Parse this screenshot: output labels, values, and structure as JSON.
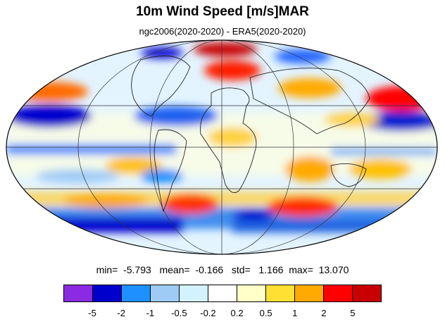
{
  "title": "10m Wind Speed [m/s]MAR",
  "subtitle": "ngc2006(2020-2020) - ERA5(2020-2020)",
  "stats": {
    "min_label": "min=",
    "min": "-5.793",
    "mean_label": "mean=",
    "mean": "-0.166",
    "std_label": "std=",
    "std": "1.166",
    "max_label": "max=",
    "max": "13.070"
  },
  "colorbar": {
    "colors": [
      "#8a2be2",
      "#0000cd",
      "#1e90ff",
      "#9ecbf5",
      "#d2f2ff",
      "#ffffff",
      "#ffffc8",
      "#ffe033",
      "#ffaa00",
      "#ff0000",
      "#c80000"
    ],
    "tick_labels": [
      "-5",
      "-2",
      "-1",
      "-0.5",
      "-0.2",
      "0.2",
      "0.5",
      "1",
      "2",
      "5"
    ]
  }
}
